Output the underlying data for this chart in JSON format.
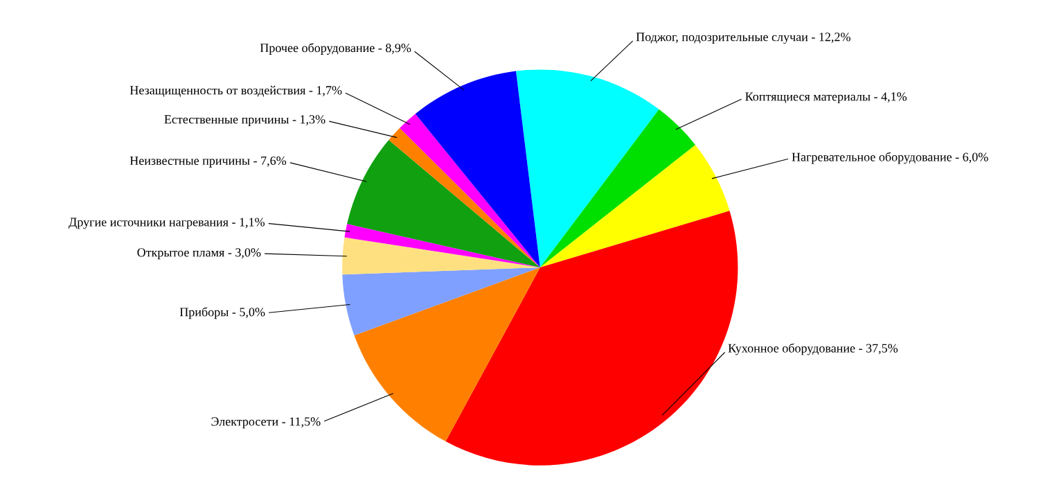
{
  "chart_data": {
    "type": "pie",
    "categories": [
      "Поджог, подозрительные случаи",
      "Коптящиеся материалы",
      "Нагревательное оборудование",
      "Кухонное оборудование",
      "Электросети",
      "Приборы",
      "Открытое пламя",
      "Другие источники нагревания",
      "Неизвестные причины",
      "Естественные причины",
      "Незащищенность от воздействия",
      "Прочее оборудование"
    ],
    "values": [
      12.2,
      4.1,
      6.0,
      37.5,
      11.5,
      5.0,
      3.0,
      1.1,
      7.6,
      1.3,
      1.7,
      8.9
    ],
    "value_labels": [
      "12,2%",
      "4,1%",
      "6,0%",
      "37,5%",
      "11,5%",
      "5,0%",
      "3,0%",
      "1,1%",
      "7,6%",
      "1,3%",
      "1,7%",
      "8,9%"
    ],
    "colors": [
      "#00ffff",
      "#00e000",
      "#ffff00",
      "#ff0000",
      "#ff8000",
      "#80a0ff",
      "#ffe080",
      "#ff00ff",
      "#10a010",
      "#ff8000",
      "#ff00ff",
      "#0000ff"
    ],
    "legend": false
  }
}
